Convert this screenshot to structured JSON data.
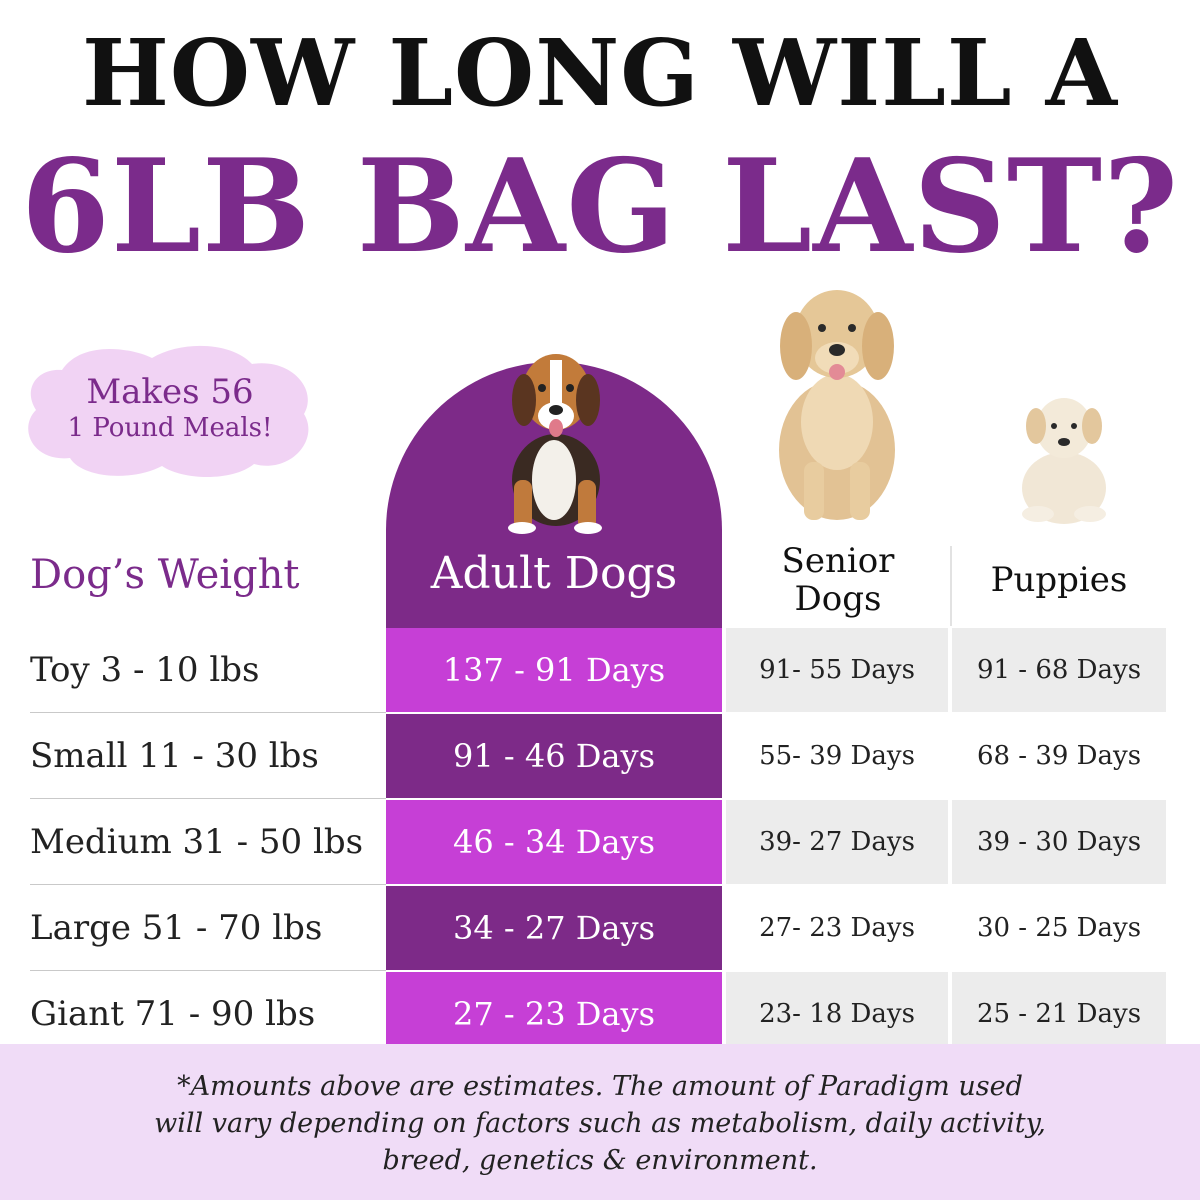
{
  "title": {
    "line1": "HOW LONG WILL A",
    "line2": "6LB BAG LAST?"
  },
  "badge": {
    "line1": "Makes 56",
    "line2": "1 Pound Meals!"
  },
  "columns": {
    "weight": "Dog’s Weight",
    "adult": "Adult Dogs",
    "senior_line1": "Senior",
    "senior_line2": "Dogs",
    "puppies": "Puppies"
  },
  "rows": [
    {
      "weight": "Toy 3 - 10 lbs",
      "adult": "137 - 91 Days",
      "senior": "91- 55 Days",
      "puppies": "91 - 68 Days"
    },
    {
      "weight": "Small 11 - 30 lbs",
      "adult": "91 - 46 Days",
      "senior": "55- 39 Days",
      "puppies": "68 - 39 Days"
    },
    {
      "weight": "Medium 31 - 50 lbs",
      "adult": "46 - 34 Days",
      "senior": "39- 27 Days",
      "puppies": "39 - 30 Days"
    },
    {
      "weight": "Large 51 - 70 lbs",
      "adult": "34 - 27 Days",
      "senior": "27- 23 Days",
      "puppies": "30 - 25 Days"
    },
    {
      "weight": "Giant 71 - 90 lbs",
      "adult": "27 - 23 Days",
      "senior": "23- 18 Days",
      "puppies": "25 - 21 Days"
    }
  ],
  "footnote": {
    "line1": "*Amounts above are estimates. The amount of Paradigm used",
    "line2": "will vary depending on factors such as metabolism, daily activity,",
    "line3": "breed, genetics & environment."
  },
  "colors": {
    "purple_dark": "#7d2a88",
    "purple_bright": "#c63fd6",
    "lavender": "#f0dcf7",
    "gray_cell": "#ececec"
  },
  "icons": [
    "beagle-dog-icon",
    "golden-retriever-dog-icon",
    "puppy-dog-icon"
  ]
}
